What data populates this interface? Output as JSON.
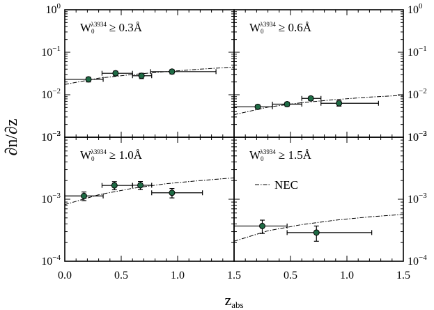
{
  "chart_data": {
    "type": "scatter",
    "ylabel": "∂n/∂z",
    "xlabel": "z",
    "xlabel_sub": "abs",
    "x_range": [
      0.0,
      1.5
    ],
    "y_range_log10": [
      -4,
      0
    ],
    "x_tick_labels_left": [
      "0.0",
      "0.5",
      "1.0",
      "1.5"
    ],
    "x_tick_labels_right": [
      "0.5",
      "1.0",
      "1.5"
    ],
    "y_tick_labels_top": [
      {
        "base": "10",
        "exp": "0"
      },
      {
        "base": "10",
        "exp": "−1"
      },
      {
        "base": "10",
        "exp": "−2"
      },
      {
        "base": "10",
        "exp": "−3"
      }
    ],
    "y_tick_labels_bottom": [
      {
        "base": "10",
        "exp": "−2"
      },
      {
        "base": "10",
        "exp": "−3"
      },
      {
        "base": "10",
        "exp": "−4"
      }
    ],
    "legend_label": "NEC",
    "panels": [
      {
        "label": {
          "w": "W",
          "w0": "0",
          "sup": "λ3934",
          "ineq": "≥ 0.3Å"
        },
        "y_decades": [
          -3,
          0
        ],
        "points": [
          {
            "z": 0.21,
            "z_lo": 0.0,
            "z_hi": 0.34,
            "dndz": 0.023,
            "err_lo": 0.003,
            "err_hi": 0.003
          },
          {
            "z": 0.45,
            "z_lo": 0.33,
            "z_hi": 0.6,
            "dndz": 0.032,
            "err_lo": 0.004,
            "err_hi": 0.004
          },
          {
            "z": 0.68,
            "z_lo": 0.6,
            "z_hi": 0.77,
            "dndz": 0.028,
            "err_lo": 0.004,
            "err_hi": 0.004
          },
          {
            "z": 0.95,
            "z_lo": 0.76,
            "z_hi": 1.34,
            "dndz": 0.035,
            "err_lo": 0.004,
            "err_hi": 0.004
          }
        ],
        "nec": [
          [
            0.0,
            0.0175
          ],
          [
            0.3,
            0.0245
          ],
          [
            0.6,
            0.03
          ],
          [
            0.9,
            0.035
          ],
          [
            1.2,
            0.04
          ],
          [
            1.5,
            0.045
          ]
        ]
      },
      {
        "label": {
          "w": "W",
          "w0": "0",
          "sup": "λ3934",
          "ineq": "≥ 0.6Å"
        },
        "y_decades": [
          -3,
          0
        ],
        "points": [
          {
            "z": 0.21,
            "z_lo": 0.0,
            "z_hi": 0.34,
            "dndz": 0.0052,
            "err_lo": 0.0006,
            "err_hi": 0.0006
          },
          {
            "z": 0.47,
            "z_lo": 0.34,
            "z_hi": 0.6,
            "dndz": 0.006,
            "err_lo": 0.0007,
            "err_hi": 0.0007
          },
          {
            "z": 0.68,
            "z_lo": 0.6,
            "z_hi": 0.77,
            "dndz": 0.0082,
            "err_lo": 0.0009,
            "err_hi": 0.0009
          },
          {
            "z": 0.93,
            "z_lo": 0.77,
            "z_hi": 1.28,
            "dndz": 0.0063,
            "err_lo": 0.0009,
            "err_hi": 0.0009
          }
        ],
        "nec": [
          [
            0.0,
            0.0034
          ],
          [
            0.3,
            0.0051
          ],
          [
            0.6,
            0.0065
          ],
          [
            0.9,
            0.0077
          ],
          [
            1.2,
            0.0088
          ],
          [
            1.5,
            0.0097
          ]
        ]
      },
      {
        "label": {
          "w": "W",
          "w0": "0",
          "sup": "λ3934",
          "ineq": "≥ 1.0Å"
        },
        "y_decades": [
          -4,
          -2
        ],
        "points": [
          {
            "z": 0.17,
            "z_lo": 0.0,
            "z_hi": 0.34,
            "dndz": 0.00113,
            "err_lo": 0.00018,
            "err_hi": 0.00018
          },
          {
            "z": 0.44,
            "z_lo": 0.33,
            "z_hi": 0.6,
            "dndz": 0.00167,
            "err_lo": 0.00025,
            "err_hi": 0.00025
          },
          {
            "z": 0.67,
            "z_lo": 0.6,
            "z_hi": 0.77,
            "dndz": 0.00168,
            "err_lo": 0.00025,
            "err_hi": 0.00025
          },
          {
            "z": 0.95,
            "z_lo": 0.77,
            "z_hi": 1.22,
            "dndz": 0.00127,
            "err_lo": 0.00022,
            "err_hi": 0.00022
          }
        ],
        "nec": [
          [
            0.0,
            0.00082
          ],
          [
            0.3,
            0.00118
          ],
          [
            0.6,
            0.0015
          ],
          [
            0.9,
            0.00178
          ],
          [
            1.2,
            0.002
          ],
          [
            1.5,
            0.00221
          ]
        ]
      },
      {
        "label": {
          "w": "W",
          "w0": "0",
          "sup": "λ3934",
          "ineq": "≥ 1.5Å"
        },
        "y_decades": [
          -4,
          -2
        ],
        "show_legend": true,
        "points": [
          {
            "z": 0.25,
            "z_lo": 0.0,
            "z_hi": 0.47,
            "dndz": 0.00037,
            "err_lo": 9e-05,
            "err_hi": 9e-05
          },
          {
            "z": 0.73,
            "z_lo": 0.47,
            "z_hi": 1.22,
            "dndz": 0.00029,
            "err_lo": 8e-05,
            "err_hi": 8e-05
          }
        ],
        "nec": [
          [
            0.0,
            0.00021
          ],
          [
            0.3,
            0.00031
          ],
          [
            0.6,
            0.00039
          ],
          [
            0.9,
            0.00046
          ],
          [
            1.2,
            0.00052
          ],
          [
            1.5,
            0.00057
          ]
        ]
      }
    ]
  }
}
